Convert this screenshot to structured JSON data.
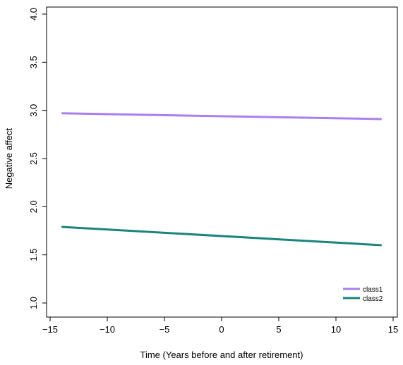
{
  "chart_data": {
    "type": "line",
    "xlabel": "Time (Years before and after retirement)",
    "ylabel": "Negative affect",
    "xlim": [
      -15,
      15
    ],
    "ylim": [
      1.0,
      4.0
    ],
    "xticks": [
      -15,
      -10,
      -5,
      0,
      5,
      10,
      15
    ],
    "xtick_labels": [
      "−15",
      "−10",
      "−5",
      "0",
      "5",
      "10",
      "15"
    ],
    "yticks": [
      1.0,
      1.5,
      2.0,
      2.5,
      3.0,
      3.5,
      4.0
    ],
    "ytick_labels": [
      "1.0",
      "1.5",
      "2.0",
      "2.5",
      "3.0",
      "3.5",
      "4.0"
    ],
    "grid": false,
    "legend_position": "bottom-right",
    "series": [
      {
        "name": "class1",
        "color": "#a97ff0",
        "x": [
          -14,
          14
        ],
        "y": [
          2.97,
          2.91
        ]
      },
      {
        "name": "class2",
        "color": "#19857a",
        "x": [
          -14,
          14
        ],
        "y": [
          1.79,
          1.6
        ]
      }
    ]
  }
}
